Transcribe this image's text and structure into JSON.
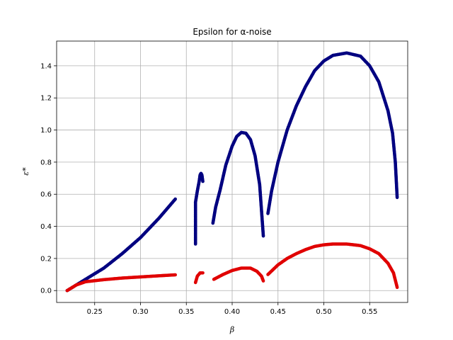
{
  "chart_data": {
    "type": "scatter",
    "title": "Epsilon for α-noise",
    "xlabel": "β",
    "ylabel": "ε*",
    "xlim": [
      0.2085,
      0.5915
    ],
    "ylim": [
      -0.074,
      1.554
    ],
    "xticks": [
      0.25,
      0.3,
      0.35,
      0.4,
      0.45,
      0.5,
      0.55
    ],
    "xtick_labels": [
      "0.25",
      "0.30",
      "0.35",
      "0.40",
      "0.45",
      "0.50",
      "0.55"
    ],
    "yticks": [
      0.0,
      0.2,
      0.4,
      0.6,
      0.8,
      1.0,
      1.2,
      1.4
    ],
    "ytick_labels": [
      "0.0",
      "0.2",
      "0.4",
      "0.6",
      "0.8",
      "1.0",
      "1.2",
      "1.4"
    ],
    "grid": true,
    "series": [
      {
        "color": "#000080",
        "segments": [
          [
            [
              0.22,
              0.0
            ],
            [
              0.24,
              0.07
            ],
            [
              0.26,
              0.14
            ],
            [
              0.28,
              0.23
            ],
            [
              0.3,
              0.33
            ],
            [
              0.32,
              0.45
            ],
            [
              0.338,
              0.57
            ]
          ],
          [
            [
              0.36,
              0.29
            ],
            [
              0.36,
              0.55
            ],
            [
              0.362,
              0.62
            ],
            [
              0.364,
              0.68
            ],
            [
              0.365,
              0.72
            ],
            [
              0.366,
              0.73
            ],
            [
              0.367,
              0.72
            ],
            [
              0.368,
              0.68
            ]
          ],
          [
            [
              0.379,
              0.42
            ],
            [
              0.382,
              0.52
            ],
            [
              0.387,
              0.63
            ],
            [
              0.393,
              0.78
            ],
            [
              0.4,
              0.9
            ],
            [
              0.405,
              0.96
            ],
            [
              0.41,
              0.985
            ],
            [
              0.415,
              0.98
            ],
            [
              0.42,
              0.94
            ],
            [
              0.425,
              0.84
            ],
            [
              0.43,
              0.66
            ],
            [
              0.432,
              0.5
            ],
            [
              0.434,
              0.34
            ]
          ],
          [
            [
              0.439,
              0.48
            ],
            [
              0.443,
              0.62
            ],
            [
              0.45,
              0.8
            ],
            [
              0.46,
              1.0
            ],
            [
              0.47,
              1.15
            ],
            [
              0.48,
              1.27
            ],
            [
              0.49,
              1.37
            ],
            [
              0.5,
              1.43
            ],
            [
              0.51,
              1.465
            ],
            [
              0.525,
              1.48
            ],
            [
              0.54,
              1.46
            ],
            [
              0.55,
              1.4
            ],
            [
              0.56,
              1.3
            ],
            [
              0.57,
              1.12
            ],
            [
              0.575,
              0.98
            ],
            [
              0.578,
              0.8
            ],
            [
              0.58,
              0.58
            ]
          ]
        ]
      },
      {
        "color": "#e00000",
        "segments": [
          [
            [
              0.22,
              0.0
            ],
            [
              0.23,
              0.035
            ],
            [
              0.24,
              0.055
            ],
            [
              0.26,
              0.068
            ],
            [
              0.28,
              0.078
            ],
            [
              0.3,
              0.085
            ],
            [
              0.32,
              0.092
            ],
            [
              0.338,
              0.098
            ]
          ],
          [
            [
              0.36,
              0.05
            ],
            [
              0.362,
              0.09
            ],
            [
              0.365,
              0.11
            ],
            [
              0.368,
              0.11
            ]
          ],
          [
            [
              0.38,
              0.07
            ],
            [
              0.39,
              0.1
            ],
            [
              0.4,
              0.125
            ],
            [
              0.41,
              0.14
            ],
            [
              0.42,
              0.14
            ],
            [
              0.427,
              0.12
            ],
            [
              0.432,
              0.09
            ],
            [
              0.434,
              0.06
            ]
          ],
          [
            [
              0.439,
              0.1
            ],
            [
              0.45,
              0.16
            ],
            [
              0.46,
              0.2
            ],
            [
              0.47,
              0.23
            ],
            [
              0.48,
              0.255
            ],
            [
              0.49,
              0.275
            ],
            [
              0.5,
              0.285
            ],
            [
              0.51,
              0.29
            ],
            [
              0.525,
              0.29
            ],
            [
              0.54,
              0.28
            ],
            [
              0.55,
              0.26
            ],
            [
              0.56,
              0.23
            ],
            [
              0.57,
              0.17
            ],
            [
              0.576,
              0.11
            ],
            [
              0.58,
              0.02
            ]
          ]
        ]
      }
    ]
  }
}
